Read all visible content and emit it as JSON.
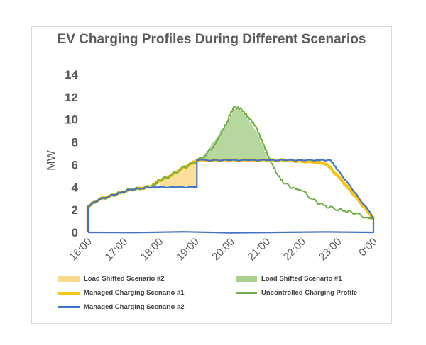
{
  "chart_data": {
    "type": "line",
    "title": "EV Charging Profiles During Different Scenarios",
    "ylabel": "MW",
    "xlabel": "",
    "ylim": [
      0,
      14
    ],
    "yticks": [
      "0",
      "2",
      "4",
      "6",
      "8",
      "10",
      "12",
      "14"
    ],
    "xlim": [
      16,
      24
    ],
    "xticks": [
      "16:00",
      "17:00",
      "18:00",
      "19:00",
      "20:00",
      "21:00",
      "22:00",
      "23:00",
      "0:00"
    ],
    "grid": false,
    "legend_position": "bottom",
    "series": [
      {
        "name": "Load Shifted Scenario #2",
        "kind": "area",
        "color": "#fbd98a",
        "x": [
          18.0,
          18.3,
          18.6,
          18.9,
          19.05,
          19.05,
          18.6,
          18.0
        ],
        "y": [
          4.6,
          5.0,
          5.6,
          6.1,
          6.3,
          4.0,
          4.0,
          4.0
        ]
      },
      {
        "name": "Load Shifted Scenario #1",
        "kind": "area",
        "color": "#a9d18e",
        "x": [
          19.05,
          19.3,
          19.6,
          19.9,
          20.1,
          20.3,
          20.5,
          20.7,
          20.9,
          21.05
        ],
        "y": [
          6.4,
          7.0,
          8.4,
          9.8,
          10.9,
          10.8,
          10.0,
          9.0,
          7.6,
          6.5
        ]
      },
      {
        "name": "Managed Charging Scenario #1",
        "kind": "line",
        "color": "#f5c518",
        "x": [
          16.0,
          16.0,
          16.3,
          16.6,
          16.9,
          17.2,
          17.5,
          17.8,
          18.0,
          18.3,
          18.6,
          18.9,
          19.05,
          19.5,
          20.0,
          20.5,
          21.0,
          21.5,
          22.0,
          22.5,
          22.7,
          23.0,
          23.3,
          23.6,
          23.9,
          24.0
        ],
        "y": [
          0.0,
          2.3,
          2.9,
          3.2,
          3.5,
          3.8,
          3.9,
          4.1,
          4.6,
          5.0,
          5.6,
          6.1,
          6.4,
          6.4,
          6.4,
          6.4,
          6.4,
          6.4,
          6.3,
          6.2,
          6.0,
          5.0,
          3.9,
          2.8,
          1.6,
          1.2
        ]
      },
      {
        "name": "Uncontrolled Charging Profile",
        "kind": "line",
        "color": "#70ad47",
        "x": [
          16.0,
          16.3,
          16.6,
          16.9,
          17.2,
          17.5,
          17.8,
          18.0,
          18.3,
          18.6,
          18.9,
          19.2,
          19.5,
          19.7,
          19.9,
          20.0,
          20.1,
          20.3,
          20.5,
          20.7,
          20.9,
          21.1,
          21.3,
          21.5,
          21.8,
          22.0,
          22.3,
          22.6,
          22.9,
          23.2,
          23.5,
          23.8,
          24.0
        ],
        "y": [
          2.3,
          2.9,
          3.2,
          3.5,
          3.8,
          3.9,
          4.1,
          4.6,
          5.0,
          5.6,
          6.1,
          6.6,
          7.5,
          8.6,
          9.8,
          10.6,
          11.1,
          10.9,
          10.2,
          9.4,
          7.9,
          6.4,
          5.2,
          4.3,
          3.9,
          3.7,
          2.9,
          2.4,
          2.1,
          1.9,
          1.7,
          1.3,
          1.2
        ]
      },
      {
        "name": "Managed Charging Scenario #2",
        "kind": "line",
        "color": "#4472c4",
        "x": [
          16.0,
          16.0,
          16.3,
          16.6,
          16.9,
          17.2,
          17.5,
          17.8,
          18.0,
          18.5,
          19.0,
          19.05,
          19.05,
          19.5,
          20.0,
          20.5,
          21.0,
          21.5,
          22.0,
          22.5,
          22.8,
          23.0,
          23.3,
          23.6,
          23.9,
          24.0,
          24.0,
          16.0
        ],
        "y": [
          0.0,
          2.3,
          2.9,
          3.2,
          3.5,
          3.8,
          3.9,
          4.0,
          4.0,
          4.0,
          4.0,
          4.0,
          6.4,
          6.4,
          6.4,
          6.4,
          6.4,
          6.4,
          6.4,
          6.4,
          6.4,
          5.5,
          4.3,
          3.0,
          1.8,
          1.2,
          0.0,
          0.0
        ]
      }
    ]
  },
  "legend_layout": [
    [
      "Load Shifted Scenario #2",
      "Load Shifted Scenario #1"
    ],
    [
      "Managed Charging Scenario #1",
      "Uncontrolled Charging Profile"
    ],
    [
      "Managed Charging Scenario #2"
    ]
  ]
}
